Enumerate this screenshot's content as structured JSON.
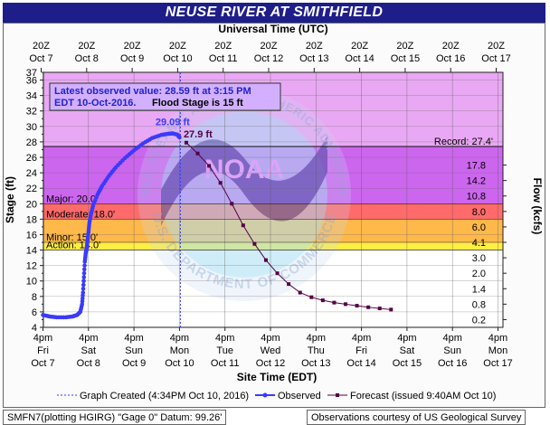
{
  "title": "NEUSE RIVER AT SMITHFIELD",
  "colors": {
    "title_bg": "#1e1e8a",
    "record_zone": "#e9a8f3",
    "major_zone": "#cc66ee",
    "moderate_zone": "#ff6a6a",
    "minor_zone": "#ffb84a",
    "action_zone": "#ffee44",
    "normal_zone": "#ffffff",
    "observed": "#3a3aff",
    "forecast": "#550044",
    "info_bg": "#d2b0ff"
  },
  "chart_data": {
    "type": "line",
    "x_top_label": "Universal Time (UTC)",
    "x_bottom_label": "Site Time (EDT)",
    "y_left_label": "Stage (ft)",
    "y_right_label": "Flow (kcfs)",
    "ylim": [
      4,
      37
    ],
    "y_ticks": [
      4,
      6,
      8,
      10,
      12,
      14,
      16,
      18,
      20,
      22,
      24,
      26,
      28,
      30,
      32,
      34,
      36
    ],
    "utc_top_ticks": [
      {
        "top": "20Z",
        "bottom": "Oct 7"
      },
      {
        "top": "20Z",
        "bottom": "Oct 8"
      },
      {
        "top": "20Z",
        "bottom": "Oct 9"
      },
      {
        "top": "20Z",
        "bottom": "Oct 10"
      },
      {
        "top": "20Z",
        "bottom": "Oct 11"
      },
      {
        "top": "20Z",
        "bottom": "Oct 12"
      },
      {
        "top": "20Z",
        "bottom": "Oct 13"
      },
      {
        "top": "20Z",
        "bottom": "Oct 14"
      },
      {
        "top": "20Z",
        "bottom": "Oct 15"
      },
      {
        "top": "20Z",
        "bottom": "Oct 16"
      },
      {
        "top": "20Z",
        "bottom": "Oct 17"
      }
    ],
    "edt_bottom_ticks": [
      {
        "time": "4pm",
        "day": "Fri",
        "date": "Oct 7"
      },
      {
        "time": "4pm",
        "day": "Sat",
        "date": "Oct 8"
      },
      {
        "time": "4pm",
        "day": "Sun",
        "date": "Oct 9"
      },
      {
        "time": "4pm",
        "day": "Mon",
        "date": "Oct 10"
      },
      {
        "time": "4pm",
        "day": "Tue",
        "date": "Oct 11"
      },
      {
        "time": "4pm",
        "day": "Wed",
        "date": "Oct 12"
      },
      {
        "time": "4pm",
        "day": "Thu",
        "date": "Oct 13"
      },
      {
        "time": "4pm",
        "day": "Fri",
        "date": "Oct 14"
      },
      {
        "time": "4pm",
        "day": "Sat",
        "date": "Oct 15"
      },
      {
        "time": "4pm",
        "day": "Sun",
        "date": "Oct 16"
      },
      {
        "time": "4pm",
        "day": "Mon",
        "date": "Oct 17"
      }
    ],
    "flow_ticks": [
      {
        "stage": 5,
        "label": "0.2"
      },
      {
        "stage": 7,
        "label": "0.8"
      },
      {
        "stage": 9,
        "label": "1.4"
      },
      {
        "stage": 11,
        "label": "2.0"
      },
      {
        "stage": 13,
        "label": "3.0"
      },
      {
        "stage": 15,
        "label": "4.1"
      },
      {
        "stage": 17,
        "label": "6.0"
      },
      {
        "stage": 19,
        "label": "8.0"
      },
      {
        "stage": 21,
        "label": "10.8"
      },
      {
        "stage": 23,
        "label": "14.2"
      },
      {
        "stage": 25,
        "label": "17.8"
      }
    ],
    "flood_categories": [
      {
        "name": "Record",
        "label": "Record: 27.4'",
        "value": 27.4
      },
      {
        "name": "Major",
        "label": "Major: 20.0'",
        "value": 20.0
      },
      {
        "name": "Moderate",
        "label": "Moderate: 18.0'",
        "value": 18.0
      },
      {
        "name": "Minor",
        "label": "Minor: 15.0'",
        "value": 15.0
      },
      {
        "name": "Action",
        "label": "Action: 14.0'",
        "value": 14.0
      }
    ],
    "info_box": {
      "line1": "Latest observed value: 28.59 ft at 3:15 PM",
      "line2_date": "EDT 10-Oct-2016.",
      "line2_flood": "Flood Stage is 15 ft"
    },
    "peak_observed_label": "29.09 ft",
    "forecast_start_label": "27.9 ft",
    "graph_created_day": 3.02,
    "series": [
      {
        "name": "Observed",
        "points": [
          [
            0.0,
            5.6
          ],
          [
            0.15,
            5.4
          ],
          [
            0.3,
            5.3
          ],
          [
            0.5,
            5.3
          ],
          [
            0.65,
            5.4
          ],
          [
            0.75,
            5.6
          ],
          [
            0.82,
            6.0
          ],
          [
            0.86,
            7.0
          ],
          [
            0.88,
            8.5
          ],
          [
            0.9,
            10.5
          ],
          [
            0.92,
            12.5
          ],
          [
            0.94,
            13.6
          ],
          [
            0.96,
            14.3
          ],
          [
            0.98,
            15.2
          ],
          [
            1.0,
            16.3
          ],
          [
            1.02,
            17.5
          ],
          [
            1.05,
            18.5
          ],
          [
            1.1,
            19.7
          ],
          [
            1.2,
            21.2
          ],
          [
            1.3,
            22.3
          ],
          [
            1.45,
            23.6
          ],
          [
            1.6,
            24.7
          ],
          [
            1.8,
            25.9
          ],
          [
            2.0,
            26.9
          ],
          [
            2.2,
            27.8
          ],
          [
            2.4,
            28.5
          ],
          [
            2.6,
            28.9
          ],
          [
            2.75,
            29.05
          ],
          [
            2.85,
            29.09
          ],
          [
            2.95,
            28.95
          ],
          [
            3.0,
            28.59
          ]
        ]
      },
      {
        "name": "Forecast (issued 9:40AM Oct 10)",
        "points": [
          [
            3.15,
            27.9
          ],
          [
            3.4,
            26.5
          ],
          [
            3.65,
            24.9
          ],
          [
            3.9,
            22.7
          ],
          [
            4.15,
            20.0
          ],
          [
            4.4,
            17.2
          ],
          [
            4.65,
            14.8
          ],
          [
            4.9,
            12.7
          ],
          [
            5.15,
            11.0
          ],
          [
            5.4,
            9.6
          ],
          [
            5.65,
            8.5
          ],
          [
            5.9,
            7.9
          ],
          [
            6.15,
            7.5
          ],
          [
            6.4,
            7.2
          ],
          [
            6.65,
            7.0
          ],
          [
            6.9,
            6.8
          ],
          [
            7.15,
            6.6
          ],
          [
            7.4,
            6.45
          ],
          [
            7.65,
            6.3
          ]
        ]
      }
    ]
  },
  "legend": {
    "graph_created": "Graph Created (4:34PM Oct 10, 2016)",
    "observed": "Observed",
    "forecast": "Forecast (issued 9:40AM Oct 10)"
  },
  "footer": {
    "left": "SMFN7(plotting HGIRG) \"Gage 0\" Datum:  99.26'",
    "right": "Observations courtesy of US Geological Survey"
  },
  "watermark": {
    "top_text": "NATIONAL OCEANIC AND ATMOSPHERIC ADMINISTRATION",
    "center_text": "NOAA",
    "bottom_text": "U.S. DEPARTMENT OF COMMERCE"
  }
}
